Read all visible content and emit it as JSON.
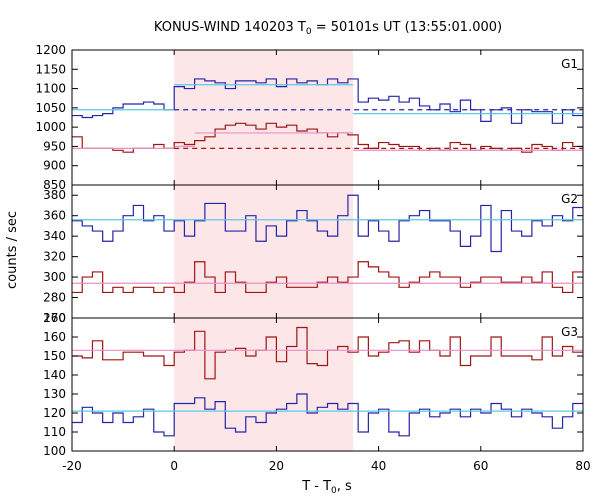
{
  "chart_data": {
    "type": "line",
    "title": "KONUS-WIND 140203 T",
    "title_sub": "0",
    "title_rest": " = 50101s UT (13:55:01.000)",
    "xlabel": "T - T",
    "xlabel_sub": "0",
    "xlabel_rest": ", s",
    "ylabel": "counts / sec",
    "xlim": [
      -20,
      80
    ],
    "x_ticks": [
      -20,
      0,
      20,
      40,
      60,
      80
    ],
    "highlight": {
      "x0": 0,
      "x1": 35,
      "color": "#fde6e8"
    },
    "colors": {
      "blue": "#2424a8",
      "red": "#a01414",
      "cyan": "#5ac8e6",
      "pink": "#e88fc8"
    },
    "bin_edges": [
      -20,
      -18,
      -16,
      -14,
      -12,
      -10,
      -8,
      -6,
      -4,
      -2,
      0,
      2,
      4,
      6,
      8,
      10,
      12,
      14,
      16,
      18,
      20,
      22,
      24,
      26,
      28,
      30,
      32,
      34,
      36,
      38,
      40,
      42,
      44,
      46,
      48,
      50,
      52,
      54,
      56,
      58,
      60,
      62,
      64,
      66,
      68,
      70,
      72,
      74,
      76,
      78,
      80
    ],
    "panels": [
      {
        "label": "G1",
        "ylim": [
          850,
          1200
        ],
        "y_ticks": [
          850,
          900,
          950,
          1000,
          1050,
          1100,
          1150,
          1200
        ],
        "series": [
          {
            "color": "blue",
            "values": [
              1030,
              1025,
              1030,
              1035,
              1050,
              1060,
              1060,
              1065,
              1060,
              1045,
              1105,
              1100,
              1125,
              1120,
              1115,
              1100,
              1120,
              1120,
              1115,
              1125,
              1105,
              1125,
              1115,
              1120,
              1110,
              1125,
              1115,
              1125,
              1065,
              1075,
              1070,
              1080,
              1065,
              1075,
              1055,
              1045,
              1060,
              1040,
              1070,
              1045,
              1015,
              1045,
              1050,
              1010,
              1045,
              1040,
              1040,
              1010,
              1045,
              1030
            ],
            "fits": [
              {
                "x0": -20,
                "x1": 0,
                "y": 1045,
                "color": "cyan"
              },
              {
                "x0": 0,
                "x1": 35,
                "y": 1110,
                "color": "cyan"
              },
              {
                "x0": 35,
                "x1": 80,
                "y": 1035,
                "color": "cyan"
              }
            ],
            "dashed": {
              "x0": 0,
              "x1": 80,
              "y": 1045
            }
          },
          {
            "color": "red",
            "values": [
              975,
              945,
              945,
              945,
              940,
              935,
              945,
              945,
              955,
              945,
              960,
              955,
              965,
              975,
              995,
              1005,
              1010,
              1005,
              995,
              1010,
              1000,
              1005,
              990,
              995,
              985,
              975,
              985,
              980,
              955,
              945,
              960,
              955,
              950,
              950,
              940,
              945,
              940,
              960,
              955,
              940,
              950,
              945,
              940,
              945,
              935,
              955,
              950,
              940,
              960,
              950
            ],
            "fits": [
              {
                "x0": -20,
                "x1": 0,
                "y": 945,
                "color": "pink"
              },
              {
                "x0": 0,
                "x1": 4,
                "y": 950,
                "color": "pink"
              },
              {
                "x0": 4,
                "x1": 35,
                "y": 985,
                "color": "pink"
              },
              {
                "x0": 35,
                "x1": 80,
                "y": 940,
                "color": "pink"
              }
            ],
            "dashed": {
              "x0": 0,
              "x1": 80,
              "y": 945
            }
          }
        ]
      },
      {
        "label": "G2",
        "ylim": [
          260,
          390
        ],
        "y_ticks": [
          260,
          280,
          300,
          320,
          340,
          360,
          380
        ],
        "series": [
          {
            "color": "blue",
            "values": [
              355,
              350,
              345,
              335,
              345,
              360,
              370,
              355,
              360,
              345,
              355,
              340,
              355,
              372,
              372,
              345,
              345,
              360,
              335,
              350,
              340,
              355,
              365,
              355,
              345,
              340,
              360,
              380,
              340,
              355,
              345,
              335,
              355,
              360,
              365,
              355,
              355,
              345,
              330,
              340,
              370,
              325,
              365,
              345,
              340,
              355,
              350,
              360,
              355,
              368
            ],
            "fits": [
              {
                "x0": -20,
                "x1": 80,
                "y": 356,
                "color": "cyan"
              }
            ]
          },
          {
            "color": "red",
            "values": [
              285,
              300,
              305,
              285,
              290,
              285,
              290,
              290,
              285,
              290,
              285,
              295,
              315,
              300,
              285,
              305,
              295,
              285,
              285,
              295,
              300,
              290,
              290,
              290,
              295,
              300,
              295,
              300,
              315,
              310,
              305,
              300,
              290,
              295,
              300,
              305,
              300,
              300,
              290,
              295,
              300,
              300,
              295,
              295,
              300,
              295,
              305,
              290,
              285,
              305
            ],
            "fits": [
              {
                "x0": -20,
                "x1": 80,
                "y": 294,
                "color": "pink"
              }
            ]
          }
        ]
      },
      {
        "label": "G3",
        "ylim": [
          100,
          170
        ],
        "y_ticks": [
          100,
          110,
          120,
          130,
          140,
          150,
          160,
          170
        ],
        "series": [
          {
            "color": "red",
            "values": [
              150,
              149,
              158,
              148,
              148,
              152,
              152,
              150,
              150,
              145,
              152,
              153,
              163,
              138,
              152,
              153,
              154,
              150,
              153,
              160,
              147,
              155,
              165,
              146,
              145,
              153,
              155,
              152,
              160,
              150,
              152,
              157,
              158,
              152,
              158,
              153,
              150,
              160,
              145,
              150,
              150,
              160,
              150,
              150,
              150,
              148,
              160,
              150,
              155,
              152
            ],
            "fits": [
              {
                "x0": -20,
                "x1": 80,
                "y": 153,
                "color": "pink"
              }
            ]
          },
          {
            "color": "blue",
            "values": [
              115,
              123,
              120,
              115,
              120,
              115,
              118,
              122,
              110,
              108,
              125,
              125,
              128,
              122,
              126,
              112,
              110,
              118,
              115,
              120,
              122,
              125,
              130,
              120,
              123,
              125,
              122,
              125,
              110,
              120,
              122,
              110,
              108,
              120,
              122,
              118,
              120,
              122,
              118,
              122,
              120,
              125,
              122,
              118,
              122,
              120,
              118,
              112,
              118,
              125
            ],
            "fits": [
              {
                "x0": -20,
                "x1": 80,
                "y": 121,
                "color": "cyan"
              }
            ]
          }
        ]
      }
    ]
  }
}
